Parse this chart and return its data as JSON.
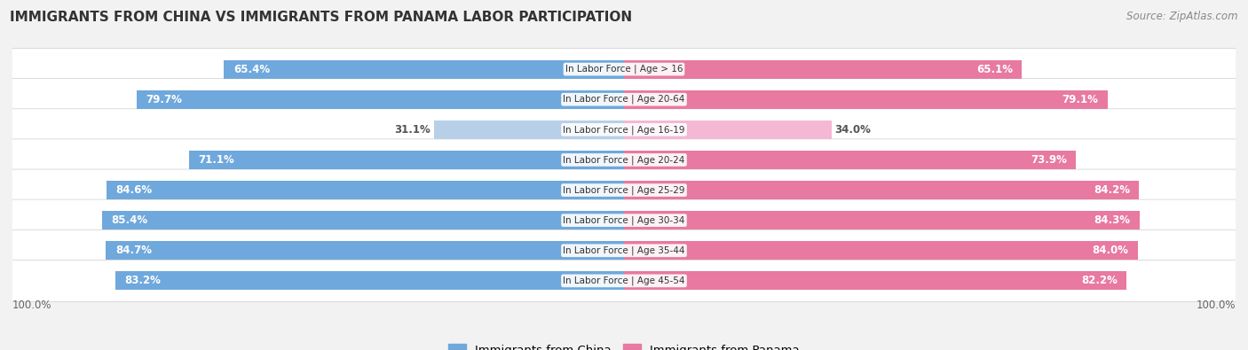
{
  "title": "IMMIGRANTS FROM CHINA VS IMMIGRANTS FROM PANAMA LABOR PARTICIPATION",
  "source": "Source: ZipAtlas.com",
  "categories": [
    "In Labor Force | Age > 16",
    "In Labor Force | Age 20-64",
    "In Labor Force | Age 16-19",
    "In Labor Force | Age 20-24",
    "In Labor Force | Age 25-29",
    "In Labor Force | Age 30-34",
    "In Labor Force | Age 35-44",
    "In Labor Force | Age 45-54"
  ],
  "china_values": [
    65.4,
    79.7,
    31.1,
    71.1,
    84.6,
    85.4,
    84.7,
    83.2
  ],
  "panama_values": [
    65.1,
    79.1,
    34.0,
    73.9,
    84.2,
    84.3,
    84.0,
    82.2
  ],
  "china_color": "#6fa8dc",
  "china_color_light": "#b8cfe8",
  "panama_color": "#e879a0",
  "panama_color_light": "#f4b8d4",
  "background_color": "#f2f2f2",
  "row_bg_color": "#e8e8e8",
  "max_value": 100.0,
  "legend_china": "Immigrants from China",
  "legend_panama": "Immigrants from Panama",
  "bar_height": 0.62,
  "title_fontsize": 11,
  "label_fontsize": 7.5,
  "value_fontsize": 8.5
}
